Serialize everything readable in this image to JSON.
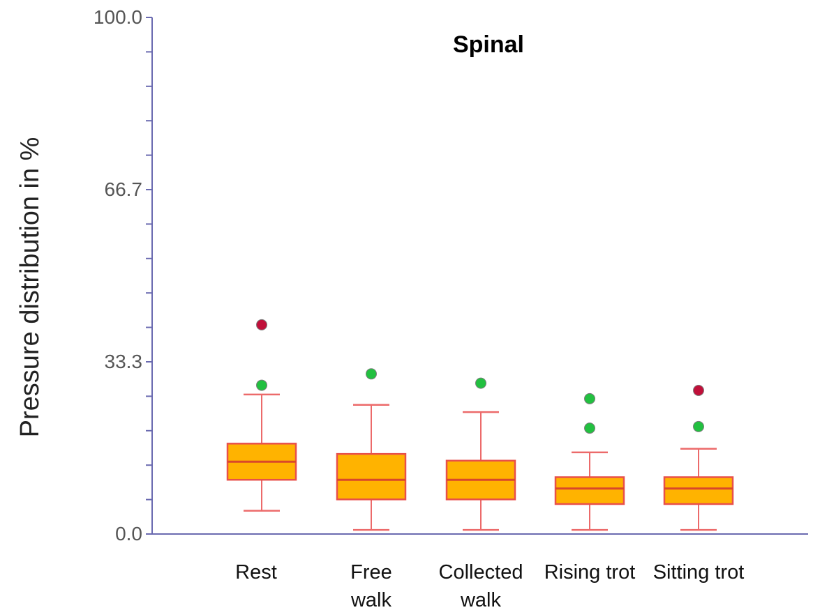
{
  "chart_data": {
    "type": "boxplot",
    "title": "Spinal",
    "ylabel": "Pressure distribution in %",
    "xlabel": "",
    "ylim": [
      0,
      100
    ],
    "y_ticks": [
      "0.0",
      "33.3",
      "66.7",
      "100.0"
    ],
    "y_tick_values": [
      0,
      33.3,
      66.7,
      100
    ],
    "minor_tick_step": 6.67,
    "grid": false,
    "categories": [
      [
        "Rest"
      ],
      [
        "Free",
        "walk"
      ],
      [
        "Collected",
        "walk"
      ],
      [
        "Rising trot"
      ],
      [
        "Sitting trot"
      ]
    ],
    "boxes": [
      {
        "whisker_low": 4.5,
        "q1": 10.5,
        "median": 14.0,
        "q3": 17.5,
        "whisker_high": 27.0,
        "outliers": [
          {
            "value": 28.8,
            "kind": "outside"
          },
          {
            "value": 40.5,
            "kind": "far-out"
          }
        ]
      },
      {
        "whisker_low": 0.8,
        "q1": 6.7,
        "median": 10.5,
        "q3": 15.5,
        "whisker_high": 25.0,
        "outliers": [
          {
            "value": 31.0,
            "kind": "outside"
          }
        ]
      },
      {
        "whisker_low": 0.8,
        "q1": 6.7,
        "median": 10.5,
        "q3": 14.2,
        "whisker_high": 23.6,
        "outliers": [
          {
            "value": 29.2,
            "kind": "outside"
          }
        ]
      },
      {
        "whisker_low": 0.8,
        "q1": 5.8,
        "median": 8.8,
        "q3": 11.0,
        "whisker_high": 15.8,
        "outliers": [
          {
            "value": 20.5,
            "kind": "outside"
          },
          {
            "value": 26.2,
            "kind": "outside"
          }
        ]
      },
      {
        "whisker_low": 0.8,
        "q1": 5.8,
        "median": 8.8,
        "q3": 11.0,
        "whisker_high": 16.5,
        "outliers": [
          {
            "value": 20.8,
            "kind": "outside"
          },
          {
            "value": 27.8,
            "kind": "far-out"
          }
        ]
      }
    ],
    "colors": {
      "axis": "#6a6ab0",
      "box_fill": "#ffb300",
      "box_stroke": "#e8504a",
      "median": "#d9482a",
      "whisker": "#ec6a6a",
      "outlier_outside": "#22c040",
      "outlier_far": "#c0103a"
    }
  }
}
